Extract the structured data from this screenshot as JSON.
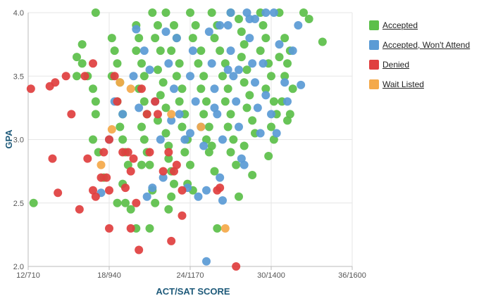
{
  "chart_data": {
    "type": "scatter",
    "title": "",
    "xlabel": "ACT/SAT SCORE",
    "ylabel": "GPA",
    "x_tick_labels": [
      "12/710",
      "18/940",
      "24/1170",
      "30/1400",
      "36/1600"
    ],
    "x_ticks": [
      12,
      18,
      24,
      30,
      36
    ],
    "y_tick_labels": [
      "2.0",
      "2.5",
      "3.0",
      "3.5",
      "4.0"
    ],
    "y_ticks": [
      2.0,
      2.5,
      3.0,
      3.5,
      4.0
    ],
    "xlim": [
      12,
      36
    ],
    "ylim": [
      2.0,
      4.0
    ],
    "grid": true,
    "legend_position": "right",
    "series": [
      {
        "name": "Accepted",
        "color": "#5cbf4a",
        "points": [
          [
            17,
            4.0
          ],
          [
            16,
            3.75
          ],
          [
            15.6,
            3.65
          ],
          [
            16,
            3.6
          ],
          [
            15.6,
            3.5
          ],
          [
            16.4,
            3.5
          ],
          [
            16.8,
            3.4
          ],
          [
            17,
            3.3
          ],
          [
            17,
            3.2
          ],
          [
            16.8,
            3.0
          ],
          [
            17.2,
            2.9
          ],
          [
            17.6,
            2.7
          ],
          [
            12.4,
            2.5
          ],
          [
            18.2,
            3.8
          ],
          [
            18.4,
            3.7
          ],
          [
            18.6,
            3.6
          ],
          [
            18.2,
            3.5
          ],
          [
            18.8,
            3.45
          ],
          [
            18.6,
            3.3
          ],
          [
            19,
            3.2
          ],
          [
            18.8,
            3.1
          ],
          [
            19,
            3.0
          ],
          [
            19.2,
            2.9
          ],
          [
            19.4,
            2.8
          ],
          [
            19,
            2.65
          ],
          [
            18.6,
            2.5
          ],
          [
            19.2,
            2.5
          ],
          [
            19.6,
            2.45
          ],
          [
            20,
            2.3
          ],
          [
            20,
            3.9
          ],
          [
            20.2,
            3.8
          ],
          [
            20,
            3.7
          ],
          [
            20.4,
            3.6
          ],
          [
            20.6,
            3.5
          ],
          [
            20.2,
            3.4
          ],
          [
            20.6,
            3.3
          ],
          [
            20.8,
            3.2
          ],
          [
            20.4,
            3.1
          ],
          [
            20.6,
            3.0
          ],
          [
            20.8,
            2.9
          ],
          [
            21,
            2.8
          ],
          [
            20.4,
            2.8
          ],
          [
            21.2,
            2.6
          ],
          [
            21.4,
            2.5
          ],
          [
            21.2,
            4.0
          ],
          [
            21.6,
            3.9
          ],
          [
            21.4,
            3.8
          ],
          [
            21.8,
            3.7
          ],
          [
            21.6,
            3.55
          ],
          [
            22,
            3.45
          ],
          [
            21.8,
            3.35
          ],
          [
            22.2,
            3.25
          ],
          [
            21.6,
            3.15
          ],
          [
            22.2,
            3.05
          ],
          [
            22.4,
            2.95
          ],
          [
            22.4,
            2.85
          ],
          [
            22.6,
            2.75
          ],
          [
            22.8,
            2.65
          ],
          [
            22.6,
            2.55
          ],
          [
            22.4,
            2.45
          ],
          [
            22.2,
            4.0
          ],
          [
            22.8,
            3.9
          ],
          [
            23,
            3.8
          ],
          [
            22.6,
            3.7
          ],
          [
            23.2,
            3.6
          ],
          [
            23,
            3.5
          ],
          [
            23.4,
            3.4
          ],
          [
            23.2,
            3.3
          ],
          [
            23.6,
            3.2
          ],
          [
            23.4,
            3.1
          ],
          [
            23.8,
            3.0
          ],
          [
            23.6,
            2.9
          ],
          [
            24,
            2.8
          ],
          [
            24.2,
            2.6
          ],
          [
            23.8,
            2.65
          ],
          [
            24,
            4.0
          ],
          [
            24.4,
            3.9
          ],
          [
            24.2,
            3.8
          ],
          [
            24.8,
            3.7
          ],
          [
            24.6,
            3.6
          ],
          [
            25,
            3.5
          ],
          [
            24.8,
            3.4
          ],
          [
            25.2,
            3.3
          ],
          [
            25,
            3.2
          ],
          [
            25.4,
            3.1
          ],
          [
            25.2,
            3.0
          ],
          [
            25.6,
            2.95
          ],
          [
            25.4,
            2.9
          ],
          [
            25.8,
            2.75
          ],
          [
            26,
            2.3
          ],
          [
            25.6,
            4.0
          ],
          [
            26,
            3.9
          ],
          [
            25.8,
            3.8
          ],
          [
            26.2,
            3.7
          ],
          [
            26.6,
            3.6
          ],
          [
            26.4,
            3.5
          ],
          [
            26.8,
            3.4
          ],
          [
            26.6,
            3.3
          ],
          [
            27,
            3.2
          ],
          [
            26.8,
            3.1
          ],
          [
            27.2,
            3.0
          ],
          [
            27,
            2.9
          ],
          [
            27.4,
            2.8
          ],
          [
            27.6,
            2.55
          ],
          [
            27,
            4.0
          ],
          [
            27.6,
            3.95
          ],
          [
            27.8,
            3.85
          ],
          [
            28,
            3.75
          ],
          [
            27.8,
            3.65
          ],
          [
            28.2,
            3.55
          ],
          [
            28,
            3.45
          ],
          [
            28.4,
            3.35
          ],
          [
            28.2,
            3.25
          ],
          [
            28.6,
            3.15
          ],
          [
            28.8,
            3.05
          ],
          [
            28.6,
            2.72
          ],
          [
            28,
            2.95
          ],
          [
            29.2,
            4.0
          ],
          [
            29.4,
            3.9
          ],
          [
            29.6,
            3.8
          ],
          [
            29.2,
            3.7
          ],
          [
            29.8,
            3.6
          ],
          [
            30,
            3.5
          ],
          [
            29.6,
            3.4
          ],
          [
            30.2,
            3.3
          ],
          [
            30.4,
            3.2
          ],
          [
            30,
            3.1
          ],
          [
            30.2,
            3.0
          ],
          [
            29.8,
            2.87
          ],
          [
            30.6,
            4.0
          ],
          [
            31,
            3.8
          ],
          [
            31.4,
            3.7
          ],
          [
            31.2,
            3.6
          ],
          [
            31,
            3.5
          ],
          [
            30.8,
            3.3
          ],
          [
            31.4,
            3.2
          ],
          [
            31.2,
            3.15
          ],
          [
            32.4,
            4.0
          ],
          [
            32.8,
            3.95
          ],
          [
            33.8,
            3.77
          ],
          [
            30.6,
            3.65
          ],
          [
            31.6,
            3.4
          ],
          [
            21,
            2.3
          ]
        ]
      },
      {
        "name": "Accepted, Won't Attend",
        "color": "#5b9bd5",
        "points": [
          [
            20,
            3.87
          ],
          [
            20.6,
            3.7
          ],
          [
            19.8,
            3.5
          ],
          [
            20.2,
            3.25
          ],
          [
            19,
            3.2
          ],
          [
            18.4,
            3.3
          ],
          [
            18,
            3.0
          ],
          [
            17.4,
            2.58
          ],
          [
            21,
            3.55
          ],
          [
            21.4,
            3.3
          ],
          [
            20.8,
            2.55
          ],
          [
            21.2,
            2.62
          ],
          [
            21.8,
            3.0
          ],
          [
            22,
            2.7
          ],
          [
            22.4,
            3.6
          ],
          [
            22.8,
            3.4
          ],
          [
            23.2,
            3.2
          ],
          [
            23.6,
            3.0
          ],
          [
            23.8,
            2.62
          ],
          [
            24,
            3.5
          ],
          [
            24.4,
            3.3
          ],
          [
            24.8,
            3.1
          ],
          [
            25,
            2.95
          ],
          [
            25.2,
            2.6
          ],
          [
            24.6,
            2.55
          ],
          [
            25.6,
            3.6
          ],
          [
            25.8,
            3.4
          ],
          [
            26,
            3.2
          ],
          [
            26.4,
            3.0
          ],
          [
            26.2,
            2.7
          ],
          [
            26.4,
            2.52
          ],
          [
            25.2,
            2.04
          ],
          [
            26.8,
            3.9
          ],
          [
            27,
            3.7
          ],
          [
            27.2,
            3.5
          ],
          [
            27.4,
            3.3
          ],
          [
            27.6,
            3.1
          ],
          [
            27.8,
            2.85
          ],
          [
            28,
            2.8
          ],
          [
            27,
            4.0
          ],
          [
            28.2,
            4.0
          ],
          [
            28.4,
            3.8
          ],
          [
            28.6,
            3.6
          ],
          [
            28.8,
            3.45
          ],
          [
            29,
            3.25
          ],
          [
            29.2,
            3.05
          ],
          [
            28.8,
            3.95
          ],
          [
            29.4,
            3.6
          ],
          [
            29.6,
            3.35
          ],
          [
            30,
            3.2
          ],
          [
            30.4,
            3.05
          ],
          [
            30.2,
            4.0
          ],
          [
            30.6,
            3.75
          ],
          [
            31,
            3.45
          ],
          [
            31.2,
            3.3
          ],
          [
            31.6,
            3.7
          ],
          [
            32,
            3.9
          ],
          [
            32.2,
            3.43
          ],
          [
            29.6,
            4.0
          ],
          [
            28.4,
            3.95
          ],
          [
            24.2,
            3.7
          ],
          [
            23,
            3.8
          ],
          [
            22.2,
            3.85
          ],
          [
            25.4,
            3.85
          ],
          [
            26.2,
            3.9
          ],
          [
            27.6,
            3.55
          ],
          [
            26.8,
            3.55
          ],
          [
            25.8,
            3.25
          ],
          [
            24,
            3.05
          ],
          [
            22.6,
            3.15
          ]
        ]
      },
      {
        "name": "Denied",
        "color": "#e04040",
        "points": [
          [
            12.2,
            3.4
          ],
          [
            13.6,
            3.42
          ],
          [
            14,
            3.45
          ],
          [
            14.8,
            3.5
          ],
          [
            15.2,
            3.2
          ],
          [
            16.2,
            3.5
          ],
          [
            16.8,
            3.6
          ],
          [
            13.8,
            2.85
          ],
          [
            14.2,
            2.58
          ],
          [
            15.8,
            2.45
          ],
          [
            16.4,
            2.85
          ],
          [
            16.8,
            2.6
          ],
          [
            17,
            2.55
          ],
          [
            17.6,
            2.9
          ],
          [
            17.8,
            2.7
          ],
          [
            18,
            3.0
          ],
          [
            18,
            2.6
          ],
          [
            18,
            2.3
          ],
          [
            18.4,
            3.5
          ],
          [
            18.6,
            3.3
          ],
          [
            19,
            2.9
          ],
          [
            19.4,
            2.9
          ],
          [
            19.8,
            2.85
          ],
          [
            19.6,
            2.75
          ],
          [
            19.2,
            2.62
          ],
          [
            20,
            2.5
          ],
          [
            19.6,
            2.3
          ],
          [
            20.2,
            2.13
          ],
          [
            20.4,
            3.4
          ],
          [
            20.8,
            3.2
          ],
          [
            21,
            2.9
          ],
          [
            21.4,
            3.3
          ],
          [
            21.6,
            3.2
          ],
          [
            22,
            2.75
          ],
          [
            22.4,
            2.9
          ],
          [
            22.8,
            2.75
          ],
          [
            23,
            2.8
          ],
          [
            23.4,
            2.6
          ],
          [
            23.4,
            2.4
          ],
          [
            22.6,
            2.2
          ],
          [
            26,
            2.6
          ],
          [
            26.2,
            2.62
          ],
          [
            27.4,
            2.0
          ],
          [
            17.4,
            2.7
          ]
        ]
      },
      {
        "name": "Wait Listed",
        "color": "#f4a94a",
        "points": [
          [
            18.8,
            3.45
          ],
          [
            19.6,
            3.4
          ],
          [
            17.4,
            2.8
          ],
          [
            18.2,
            3.08
          ],
          [
            22.6,
            3.2
          ],
          [
            24.8,
            3.1
          ],
          [
            26.6,
            2.3
          ]
        ]
      }
    ]
  }
}
